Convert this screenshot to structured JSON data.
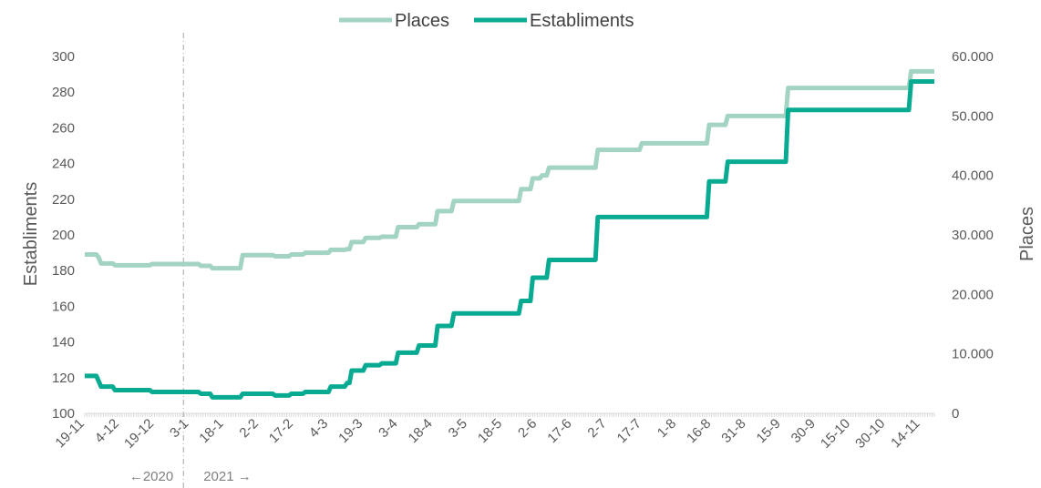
{
  "chart_data": {
    "type": "line",
    "title": "",
    "colors": {
      "places": "#a3d3c2",
      "establiments": "#08ab92"
    },
    "legend": [
      "Places",
      "Establiments"
    ],
    "y_left": {
      "label": "Establiments",
      "ylim": [
        100,
        300
      ],
      "ticks": [
        "100",
        "120",
        "140",
        "160",
        "180",
        "200",
        "220",
        "240",
        "260",
        "280",
        "300"
      ]
    },
    "y_right": {
      "label": "Places",
      "ylim": [
        0,
        60000
      ],
      "ticks": [
        "0",
        "10.000",
        "20.000",
        "30.000",
        "40.000",
        "50.000",
        "60.000"
      ]
    },
    "x_ticks": [
      "19-11",
      "4-12",
      "19-12",
      "3-1",
      "18-1",
      "2-2",
      "17-2",
      "4-3",
      "19-3",
      "3-4",
      "18-4",
      "3-5",
      "18-5",
      "2-6",
      "17-6",
      "2-7",
      "17-7",
      "1-8",
      "16-8",
      "31-8",
      "15-9",
      "30-9",
      "15-10",
      "30-10",
      "14-11"
    ],
    "x_range_days": [
      0,
      366
    ],
    "x_ticks_interval_days": 15,
    "year_divider_label_left": "←2020",
    "year_divider_label_right": "2021 →",
    "series": [
      {
        "name": "Establiments",
        "axis": "left",
        "x": [
          0,
          5,
          6,
          7,
          12,
          13,
          28,
          29,
          40,
          41,
          49,
          50,
          54,
          55,
          67,
          68,
          71,
          72,
          81,
          82,
          88,
          89,
          94,
          95,
          105,
          106,
          112,
          113,
          114,
          115,
          120,
          121,
          127,
          128,
          134,
          135,
          143,
          144,
          151,
          152,
          158,
          159,
          170,
          171,
          187,
          188,
          192,
          193,
          196,
          197,
          199,
          200,
          220,
          221,
          239,
          240,
          268,
          269,
          270,
          271,
          276,
          277,
          302,
          303,
          305,
          306,
          355,
          356,
          362,
          363,
          366
        ],
        "y": [
          121,
          121,
          118,
          115,
          115,
          113,
          113,
          112,
          112,
          112,
          112,
          111,
          111,
          109,
          109,
          111,
          111,
          111,
          111,
          110,
          110,
          111,
          111,
          112,
          112,
          115,
          115,
          117,
          117,
          124,
          124,
          127,
          127,
          128,
          128,
          134,
          134,
          138,
          138,
          149,
          149,
          156,
          156,
          156,
          156,
          163,
          163,
          176,
          176,
          176,
          176,
          186,
          186,
          210,
          210,
          210,
          210,
          230,
          230,
          230,
          230,
          241,
          241,
          270,
          270,
          270,
          270,
          286,
          286,
          286,
          286
        ]
      },
      {
        "name": "Places",
        "axis": "right",
        "x": [
          0,
          5,
          6,
          7,
          12,
          13,
          28,
          29,
          40,
          41,
          49,
          50,
          54,
          55,
          67,
          68,
          71,
          72,
          81,
          82,
          88,
          89,
          94,
          95,
          105,
          106,
          112,
          113,
          114,
          115,
          120,
          121,
          127,
          128,
          134,
          135,
          143,
          144,
          151,
          152,
          158,
          159,
          170,
          171,
          187,
          188,
          192,
          193,
          196,
          197,
          199,
          200,
          220,
          221,
          239,
          240,
          268,
          269,
          270,
          271,
          276,
          277,
          302,
          303,
          305,
          306,
          355,
          356,
          362,
          363,
          366
        ],
        "y": [
          26700,
          26700,
          26200,
          25200,
          25200,
          24900,
          24900,
          25100,
          25100,
          25100,
          25100,
          24800,
          24800,
          24400,
          24400,
          26600,
          26600,
          26600,
          26600,
          26400,
          26400,
          26700,
          26700,
          27000,
          27000,
          27500,
          27500,
          27600,
          27600,
          28800,
          28800,
          29500,
          29500,
          29700,
          29700,
          31300,
          31300,
          31800,
          31800,
          34000,
          34000,
          35700,
          35700,
          35700,
          35700,
          37700,
          37700,
          39500,
          39500,
          40000,
          40000,
          41300,
          41300,
          44300,
          44300,
          45400,
          45400,
          48500,
          48500,
          48500,
          48500,
          50000,
          50000,
          54700,
          54700,
          54700,
          54700,
          57500,
          57500,
          57500,
          57500
        ]
      }
    ]
  }
}
